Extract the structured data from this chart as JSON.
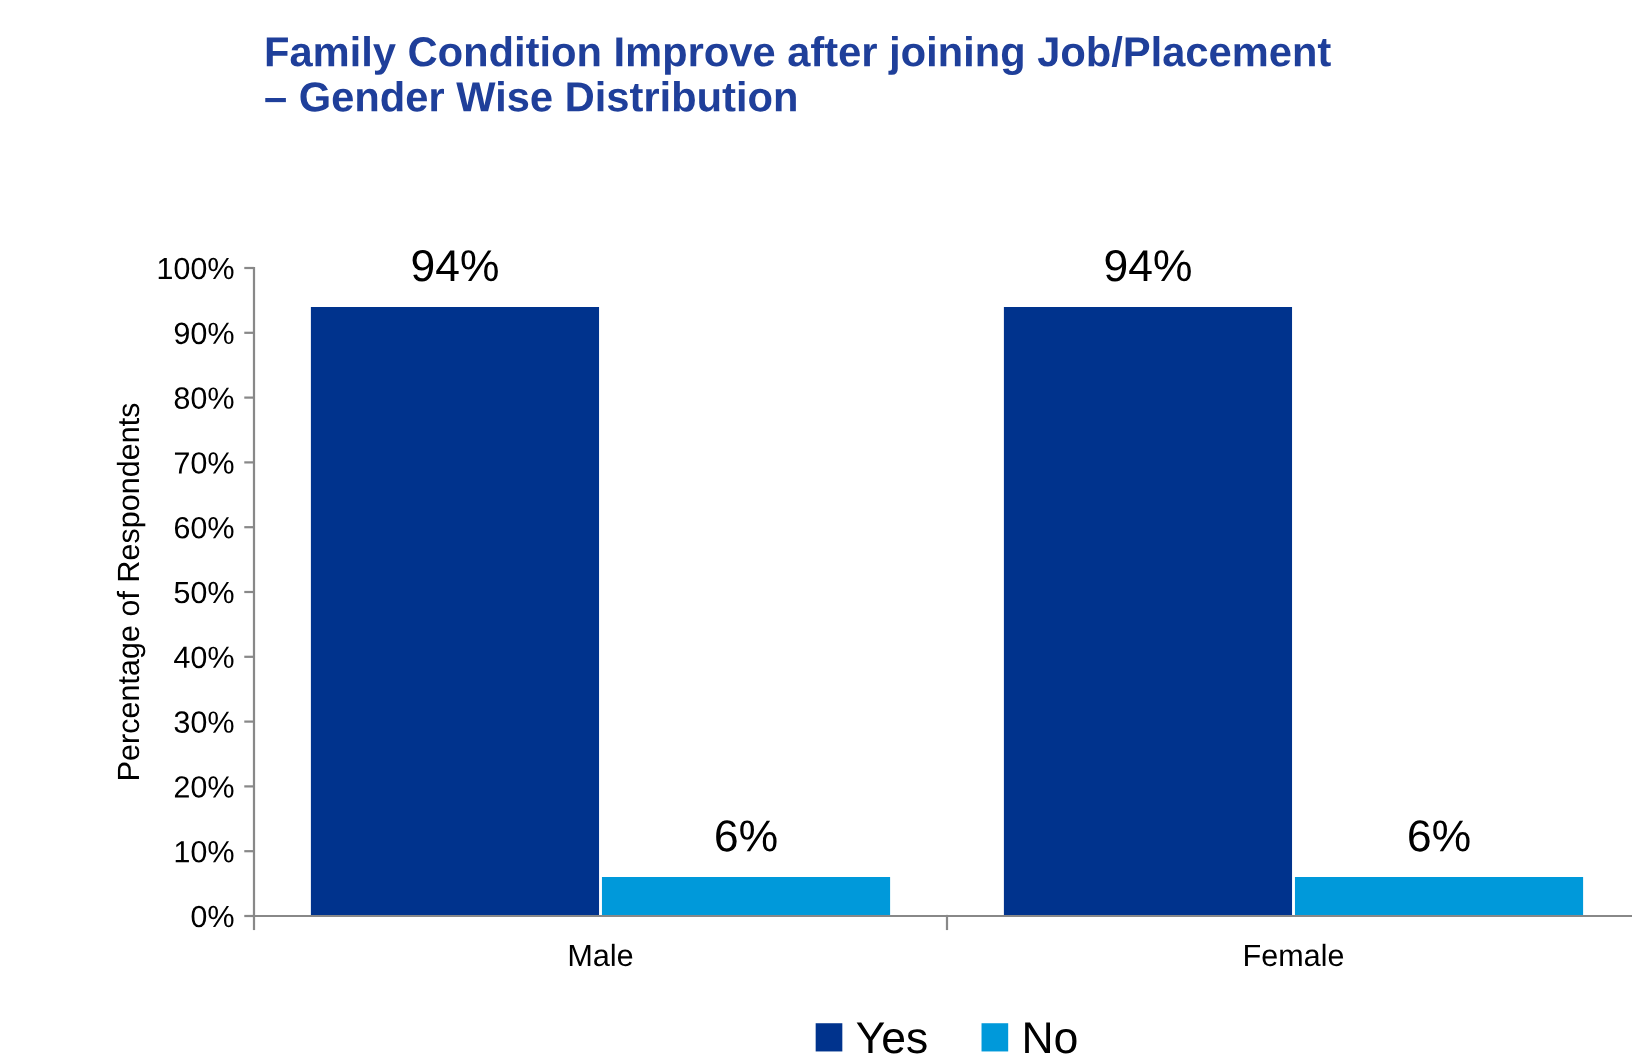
{
  "chart_data": {
    "type": "bar",
    "title": "Family Condition Improve after joining Job/Placement\n– Gender Wise Distribution",
    "ylabel": "Percentage of Respondents",
    "categories": [
      "Male",
      "Female"
    ],
    "series": [
      {
        "name": "Yes",
        "color": "#00338d",
        "values": [
          94,
          94
        ],
        "value_labels": [
          "94%",
          "94%"
        ]
      },
      {
        "name": "No",
        "color": "#0099da",
        "values": [
          6,
          6
        ],
        "value_labels": [
          "6%",
          "6%"
        ]
      }
    ],
    "ylim": [
      0,
      100
    ],
    "yticks": [
      {
        "value": 0,
        "label": "0%"
      },
      {
        "value": 10,
        "label": "10%"
      },
      {
        "value": 20,
        "label": "20%"
      },
      {
        "value": 30,
        "label": "30%"
      },
      {
        "value": 40,
        "label": "40%"
      },
      {
        "value": 50,
        "label": "50%"
      },
      {
        "value": 60,
        "label": "60%"
      },
      {
        "value": 70,
        "label": "70%"
      },
      {
        "value": 80,
        "label": "80%"
      },
      {
        "value": 90,
        "label": "90%"
      },
      {
        "value": 100,
        "label": "100%"
      }
    ],
    "grid": false,
    "legend": "bottom"
  }
}
